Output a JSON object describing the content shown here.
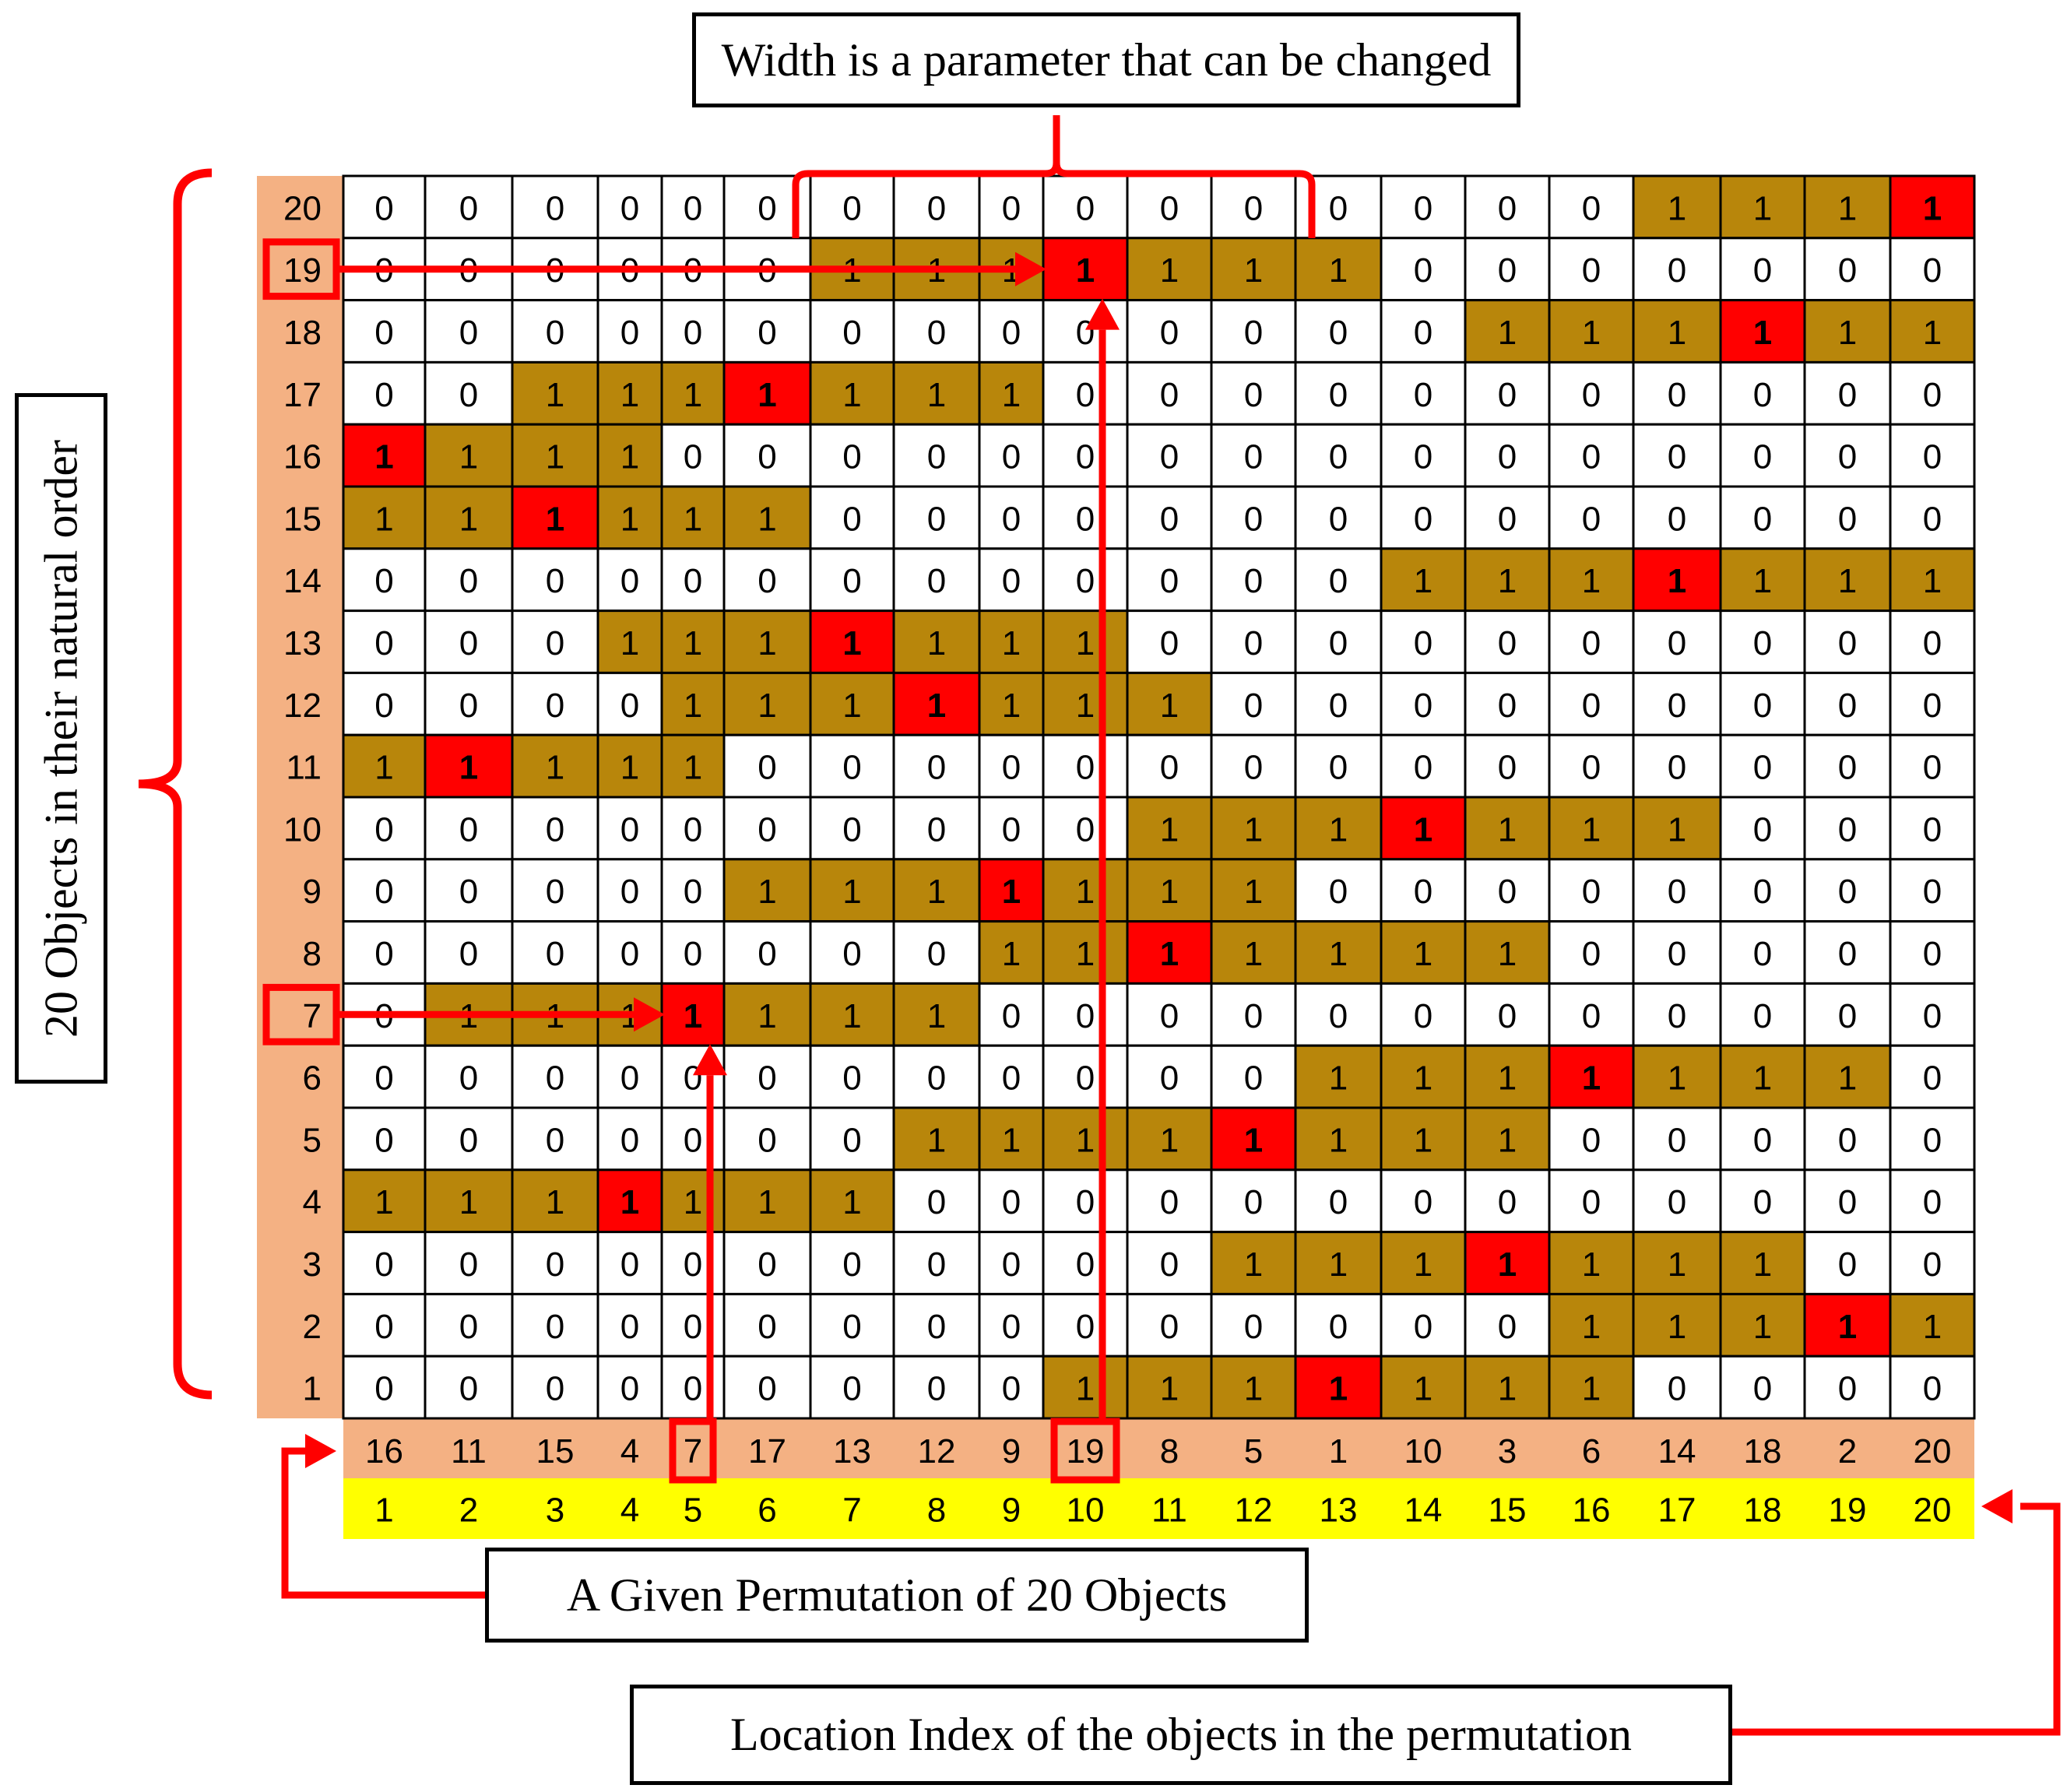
{
  "labels": {
    "width_note": "Width is a parameter that can be changed",
    "natural_order": "20 Objects in their natural order",
    "permutation": "A Given Permutation of 20 Objects",
    "location_index": "Location Index of the objects in the permutation"
  },
  "colors": {
    "band": "#b8860b",
    "diagonal": "#ff0000",
    "empty": "#ffffff",
    "axis_band": "#f4b183",
    "index_band": "#ffff00",
    "annotation": "#ff0000",
    "grid_line": "#000000"
  },
  "row_labels": [
    "20",
    "19",
    "18",
    "17",
    "16",
    "15",
    "14",
    "13",
    "12",
    "11",
    "10",
    "9",
    "8",
    "7",
    "6",
    "5",
    "4",
    "3",
    "2",
    "1"
  ],
  "permutation": [
    "16",
    "11",
    "15",
    "4",
    "7",
    "17",
    "13",
    "12",
    "9",
    "19",
    "8",
    "5",
    "1",
    "10",
    "3",
    "6",
    "14",
    "18",
    "2",
    "20"
  ],
  "location_index": [
    "1",
    "2",
    "3",
    "4",
    "5",
    "6",
    "7",
    "8",
    "9",
    "10",
    "11",
    "12",
    "13",
    "14",
    "15",
    "16",
    "17",
    "18",
    "19",
    "20"
  ],
  "matrix": [
    [
      "0",
      "0",
      "0",
      "0",
      "0",
      "0",
      "0",
      "0",
      "0",
      "0",
      "0",
      "0",
      "0",
      "0",
      "0",
      "0",
      "1",
      "1",
      "1",
      "1"
    ],
    [
      "0",
      "0",
      "0",
      "0",
      "0",
      "0",
      "1",
      "1",
      "1",
      "1",
      "1",
      "1",
      "1",
      "0",
      "0",
      "0",
      "0",
      "0",
      "0",
      "0"
    ],
    [
      "0",
      "0",
      "0",
      "0",
      "0",
      "0",
      "0",
      "0",
      "0",
      "0",
      "0",
      "0",
      "0",
      "0",
      "1",
      "1",
      "1",
      "1",
      "1",
      "1"
    ],
    [
      "0",
      "0",
      "1",
      "1",
      "1",
      "1",
      "1",
      "1",
      "1",
      "0",
      "0",
      "0",
      "0",
      "0",
      "0",
      "0",
      "0",
      "0",
      "0",
      "0"
    ],
    [
      "1",
      "1",
      "1",
      "1",
      "0",
      "0",
      "0",
      "0",
      "0",
      "0",
      "0",
      "0",
      "0",
      "0",
      "0",
      "0",
      "0",
      "0",
      "0",
      "0"
    ],
    [
      "1",
      "1",
      "1",
      "1",
      "1",
      "1",
      "0",
      "0",
      "0",
      "0",
      "0",
      "0",
      "0",
      "0",
      "0",
      "0",
      "0",
      "0",
      "0",
      "0"
    ],
    [
      "0",
      "0",
      "0",
      "0",
      "0",
      "0",
      "0",
      "0",
      "0",
      "0",
      "0",
      "0",
      "0",
      "1",
      "1",
      "1",
      "1",
      "1",
      "1",
      "1"
    ],
    [
      "0",
      "0",
      "0",
      "1",
      "1",
      "1",
      "1",
      "1",
      "1",
      "1",
      "0",
      "0",
      "0",
      "0",
      "0",
      "0",
      "0",
      "0",
      "0",
      "0"
    ],
    [
      "0",
      "0",
      "0",
      "0",
      "1",
      "1",
      "1",
      "1",
      "1",
      "1",
      "1",
      "0",
      "0",
      "0",
      "0",
      "0",
      "0",
      "0",
      "0",
      "0"
    ],
    [
      "1",
      "1",
      "1",
      "1",
      "1",
      "0",
      "0",
      "0",
      "0",
      "0",
      "0",
      "0",
      "0",
      "0",
      "0",
      "0",
      "0",
      "0",
      "0",
      "0"
    ],
    [
      "0",
      "0",
      "0",
      "0",
      "0",
      "0",
      "0",
      "0",
      "0",
      "0",
      "1",
      "1",
      "1",
      "1",
      "1",
      "1",
      "1",
      "0",
      "0",
      "0"
    ],
    [
      "0",
      "0",
      "0",
      "0",
      "0",
      "1",
      "1",
      "1",
      "1",
      "1",
      "1",
      "1",
      "0",
      "0",
      "0",
      "0",
      "0",
      "0",
      "0",
      "0"
    ],
    [
      "0",
      "0",
      "0",
      "0",
      "0",
      "0",
      "0",
      "0",
      "1",
      "1",
      "1",
      "1",
      "1",
      "1",
      "1",
      "0",
      "0",
      "0",
      "0",
      "0"
    ],
    [
      "0",
      "1",
      "1",
      "1",
      "1",
      "1",
      "1",
      "1",
      "0",
      "0",
      "0",
      "0",
      "0",
      "0",
      "0",
      "0",
      "0",
      "0",
      "0",
      "0"
    ],
    [
      "0",
      "0",
      "0",
      "0",
      "0",
      "0",
      "0",
      "0",
      "0",
      "0",
      "0",
      "0",
      "1",
      "1",
      "1",
      "1",
      "1",
      "1",
      "1",
      "0"
    ],
    [
      "0",
      "0",
      "0",
      "0",
      "0",
      "0",
      "0",
      "1",
      "1",
      "1",
      "1",
      "1",
      "1",
      "1",
      "1",
      "0",
      "0",
      "0",
      "0",
      "0"
    ],
    [
      "1",
      "1",
      "1",
      "1",
      "1",
      "1",
      "1",
      "0",
      "0",
      "0",
      "0",
      "0",
      "0",
      "0",
      "0",
      "0",
      "0",
      "0",
      "0",
      "0"
    ],
    [
      "0",
      "0",
      "0",
      "0",
      "0",
      "0",
      "0",
      "0",
      "0",
      "0",
      "0",
      "1",
      "1",
      "1",
      "1",
      "1",
      "1",
      "1",
      "0",
      "0"
    ],
    [
      "0",
      "0",
      "0",
      "0",
      "0",
      "0",
      "0",
      "0",
      "0",
      "0",
      "0",
      "0",
      "0",
      "0",
      "0",
      "1",
      "1",
      "1",
      "1",
      "1"
    ],
    [
      "0",
      "0",
      "0",
      "0",
      "0",
      "0",
      "0",
      "0",
      "0",
      "1",
      "1",
      "1",
      "1",
      "1",
      "1",
      "1",
      "0",
      "0",
      "0",
      "0"
    ]
  ],
  "highlight_rows": [
    "19",
    "7"
  ],
  "highlight_columns": [
    "5",
    "10"
  ]
}
